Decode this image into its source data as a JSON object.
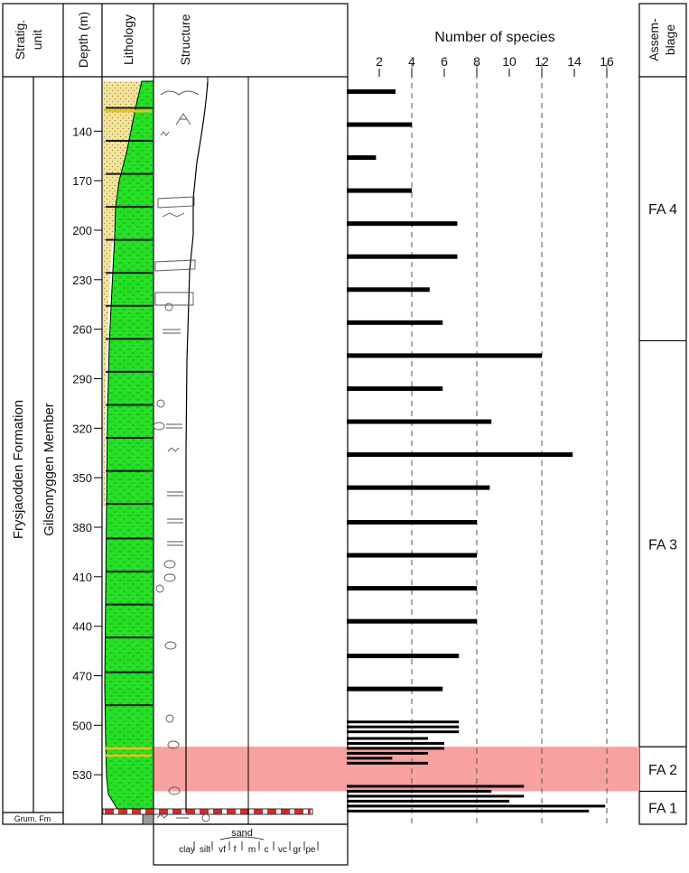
{
  "header": {
    "stratig": [
      "Stratig.",
      "unit"
    ],
    "depth": "Depth (m)",
    "lithology": "Lithology",
    "structure": "Structure",
    "assemblage": [
      "Assem-",
      "blage"
    ]
  },
  "units": {
    "formation": "Frysjaodden Formation",
    "member": "Gilsonryggen Member",
    "base": "Grum. Fm"
  },
  "grain_scale": {
    "sand_label": "sand",
    "labels": [
      "clay",
      "silt",
      "vf",
      "f",
      "m",
      "c",
      "vc",
      "gr",
      "pe"
    ]
  },
  "assemblages": [
    {
      "label": "FA 4",
      "top": 122,
      "bottom": 267
    },
    {
      "label": "FA 3",
      "top": 267,
      "bottom": 513
    },
    {
      "label": "FA 2",
      "top": 513,
      "bottom": 540
    },
    {
      "label": "FA 1",
      "top": 540,
      "bottom": 556
    }
  ],
  "highlight": {
    "top": 513,
    "bottom": 540,
    "color": "#f7a1a1"
  },
  "colors": {
    "shale": "#26e026",
    "sand": "#f3e39a",
    "bar": "#000000",
    "yellow": "#e6c21a",
    "red": "#d42a2a"
  },
  "chart_data": {
    "type": "bar",
    "orientation": "horizontal",
    "title": "Number of species",
    "ylabel": "Depth (m)",
    "xlim": [
      0,
      18
    ],
    "ylim": [
      107,
      560
    ],
    "x_ticks": [
      2,
      4,
      6,
      8,
      10,
      12,
      14,
      16
    ],
    "y_ticks": [
      140,
      170,
      200,
      230,
      260,
      290,
      320,
      350,
      380,
      410,
      440,
      470,
      500,
      530
    ],
    "gridlines_x": [
      4,
      8,
      12,
      16
    ],
    "values": [
      {
        "depth": 116,
        "value": 3
      },
      {
        "depth": 136,
        "value": 4
      },
      {
        "depth": 156,
        "value": 1.8
      },
      {
        "depth": 176,
        "value": 4
      },
      {
        "depth": 196,
        "value": 6.8
      },
      {
        "depth": 216,
        "value": 6.8
      },
      {
        "depth": 236,
        "value": 5.1
      },
      {
        "depth": 256,
        "value": 5.9
      },
      {
        "depth": 276,
        "value": 12
      },
      {
        "depth": 296,
        "value": 5.9
      },
      {
        "depth": 316,
        "value": 8.9
      },
      {
        "depth": 336,
        "value": 13.9
      },
      {
        "depth": 356,
        "value": 8.8
      },
      {
        "depth": 377,
        "value": 8
      },
      {
        "depth": 397,
        "value": 8
      },
      {
        "depth": 417,
        "value": 8
      },
      {
        "depth": 437,
        "value": 8
      },
      {
        "depth": 458,
        "value": 6.9
      },
      {
        "depth": 478,
        "value": 5.9
      },
      {
        "depth": 498,
        "value": 6.9
      },
      {
        "depth": 501,
        "value": 6.9
      },
      {
        "depth": 504,
        "value": 6.9
      },
      {
        "depth": 508,
        "value": 5
      },
      {
        "depth": 511,
        "value": 6
      },
      {
        "depth": 514,
        "value": 6
      },
      {
        "depth": 517,
        "value": 5
      },
      {
        "depth": 520,
        "value": 2.8
      },
      {
        "depth": 523,
        "value": 5
      },
      {
        "depth": 537,
        "value": 10.9
      },
      {
        "depth": 540,
        "value": 8.9
      },
      {
        "depth": 543,
        "value": 10.9
      },
      {
        "depth": 546,
        "value": 10
      },
      {
        "depth": 549,
        "value": 15.9
      },
      {
        "depth": 552,
        "value": 14.9
      }
    ]
  }
}
